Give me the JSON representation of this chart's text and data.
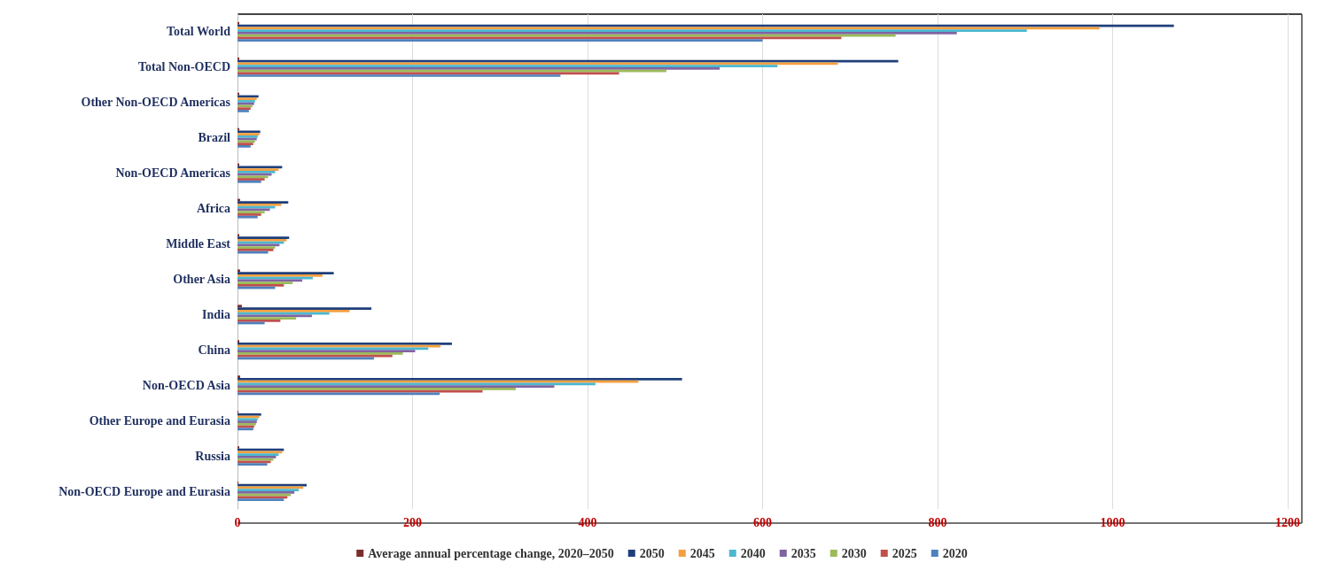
{
  "chart_data": {
    "type": "bar",
    "orientation": "horizontal",
    "categories": [
      "Total World",
      "Total Non-OECD",
      "Other Non-OECD Americas",
      "Brazil",
      "Non-OECD Americas",
      "Africa",
      "Middle East",
      "Other Asia",
      "India",
      "China",
      "Non-OECD Asia",
      "Other Europe and Eurasia",
      "Russia",
      "Non-OECD Europe and Eurasia"
    ],
    "series": [
      {
        "name": "Average annual percentage change, 2020–2050",
        "color": "#7b2c2c",
        "values": [
          2,
          2,
          2,
          2,
          2,
          3,
          2,
          3,
          5,
          2,
          3,
          1,
          2,
          1
        ]
      },
      {
        "name": "2050",
        "color": "#1f3f7a",
        "values": [
          1070,
          755,
          24,
          26,
          51,
          58,
          59,
          110,
          153,
          245,
          508,
          27,
          53,
          79
        ]
      },
      {
        "name": "2045",
        "color": "#f4a040",
        "values": [
          985,
          686,
          22,
          25,
          47,
          50,
          56,
          97,
          128,
          232,
          458,
          25,
          51,
          75
        ]
      },
      {
        "name": "2040",
        "color": "#4bb8d0",
        "values": [
          902,
          617,
          20,
          23,
          43,
          43,
          53,
          86,
          105,
          218,
          409,
          23,
          47,
          70
        ]
      },
      {
        "name": "2035",
        "color": "#8064a2",
        "values": [
          822,
          551,
          19,
          22,
          39,
          37,
          48,
          74,
          85,
          203,
          362,
          22,
          44,
          65
        ]
      },
      {
        "name": "2030",
        "color": "#9bbb59",
        "values": [
          752,
          490,
          17,
          20,
          35,
          31,
          43,
          63,
          67,
          189,
          318,
          21,
          41,
          61
        ]
      },
      {
        "name": "2025",
        "color": "#c0504d",
        "values": [
          690,
          436,
          15,
          18,
          31,
          27,
          41,
          53,
          49,
          177,
          280,
          19,
          38,
          57
        ]
      },
      {
        "name": "2020",
        "color": "#4f81bd",
        "values": [
          600,
          369,
          13,
          15,
          27,
          23,
          35,
          43,
          31,
          156,
          231,
          18,
          34,
          53
        ]
      }
    ],
    "xlim": [
      0,
      1200
    ],
    "xticks": [
      0,
      200,
      400,
      600,
      800,
      1000,
      1200
    ],
    "grid": "x",
    "legend": "bottom"
  }
}
